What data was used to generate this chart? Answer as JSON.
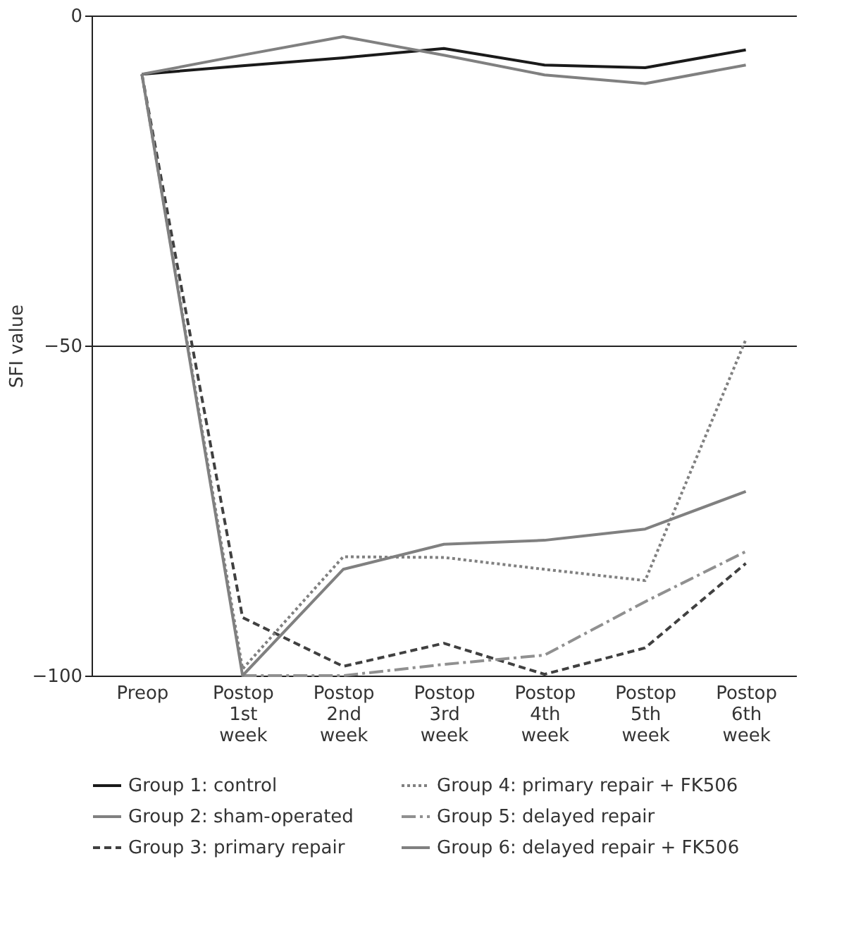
{
  "chart_data": {
    "type": "line",
    "ylabel": "SFI value",
    "categories": [
      "Preop",
      "Postop 1st week",
      "Postop 2nd week",
      "Postop 3rd week",
      "Postop 4th week",
      "Postop 5th week",
      "Postop 6th week"
    ],
    "ylim": [
      -100,
      0
    ],
    "yticks": [
      -100,
      -50,
      0
    ],
    "grid": "y",
    "legend": "bottom",
    "marker": "none",
    "series": [
      {
        "name": "Group 1: control",
        "color": "#1a1a1a",
        "line_style": "solid",
        "values": [
          -8.9,
          -7.6,
          -6.4,
          -5.0,
          -7.5,
          -7.9,
          -5.2
        ]
      },
      {
        "name": "Group 2: sham-operated",
        "color": "#808080",
        "line_style": "solid",
        "values": [
          -8.9,
          -6.0,
          -3.2,
          -6.0,
          -9.0,
          -10.3,
          -7.5
        ]
      },
      {
        "name": "Group 3: primary repair",
        "color": "#404040",
        "line_style": "dashed",
        "values": [
          -8.9,
          -91.2,
          -98.6,
          -95.1,
          -99.8,
          -95.8,
          -83.0
        ]
      },
      {
        "name": "Group 4: primary repair + FK506",
        "color": "#808080",
        "line_style": "dotted",
        "values": [
          -8.9,
          -99.0,
          -82.0,
          -82.1,
          -83.9,
          -85.6,
          -49.1
        ]
      },
      {
        "name": "Group 5: delayed repair",
        "color": "#909090",
        "line_style": "dashdot",
        "values": [
          null,
          -100,
          -100,
          -98.3,
          -96.9,
          -88.8,
          -81.2
        ]
      },
      {
        "name": "Group 6: delayed repair + FK506",
        "color": "#808080",
        "line_style": "solid",
        "values": [
          -8.9,
          -100,
          -83.9,
          -80.1,
          -79.5,
          -77.8,
          -72.1
        ]
      }
    ]
  }
}
